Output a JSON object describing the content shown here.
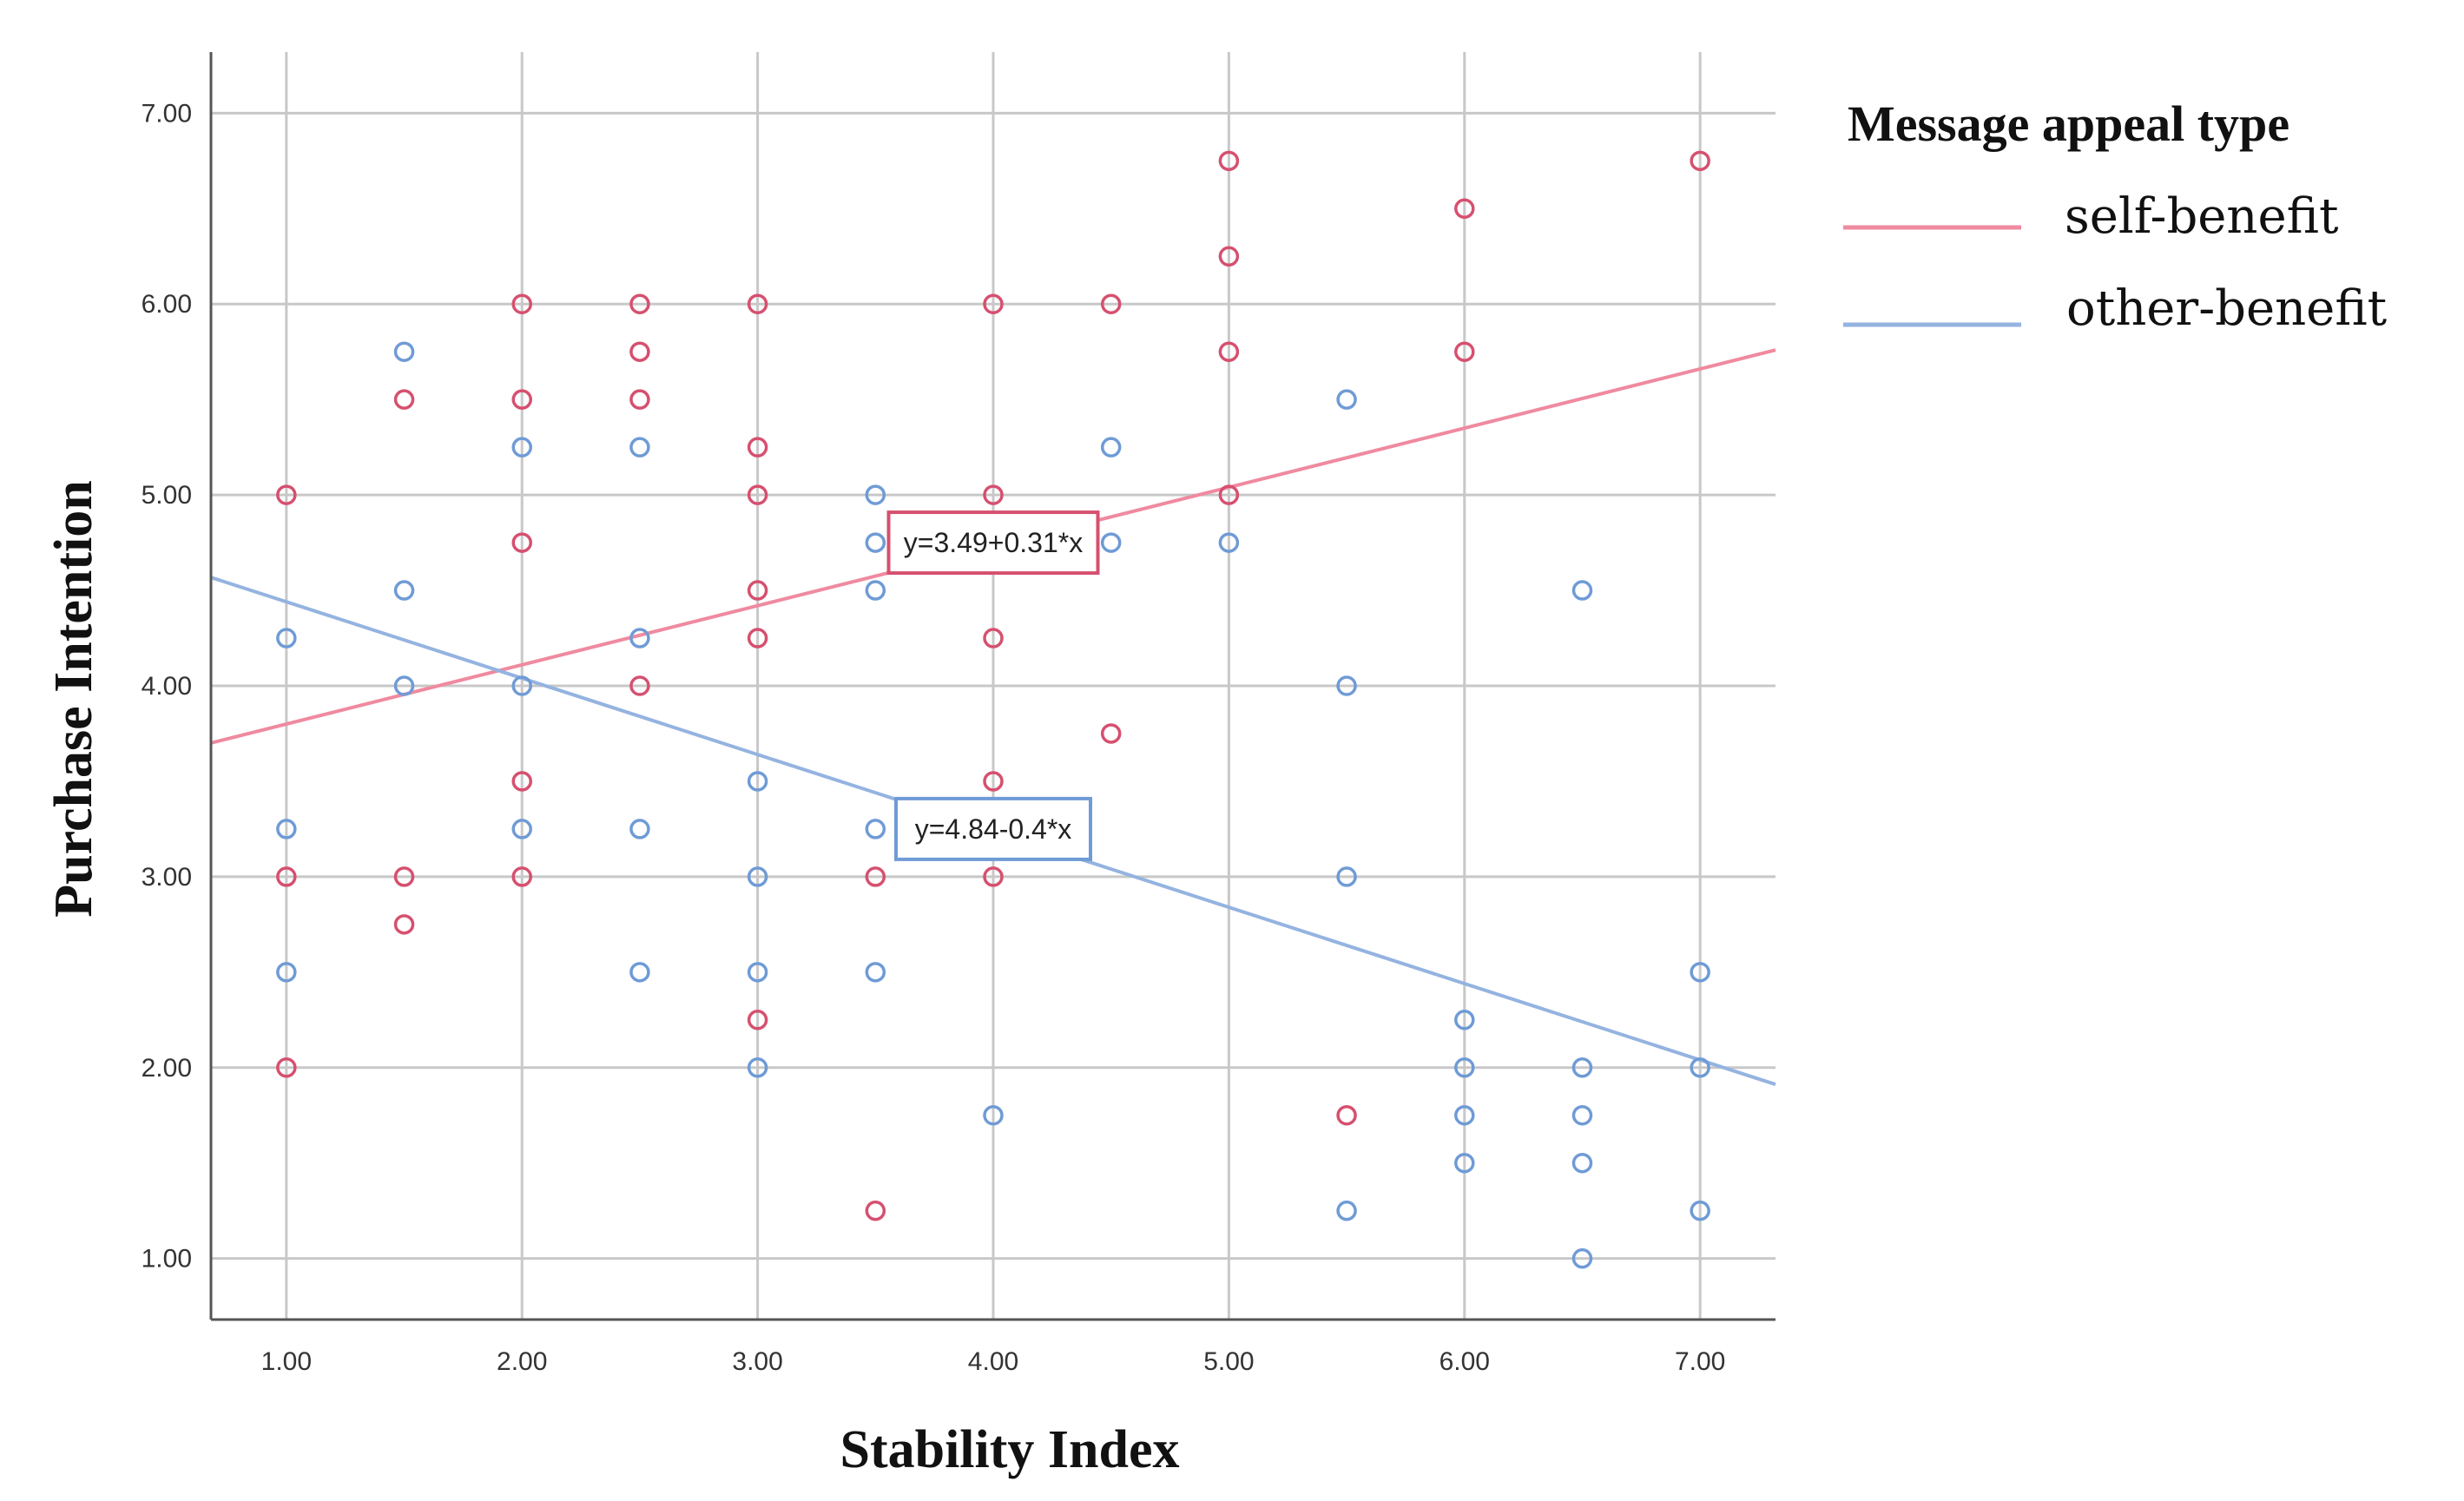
{
  "chart_data": {
    "type": "scatter",
    "title": "",
    "xlabel": "Stability Index",
    "ylabel": "Purchase Intention",
    "xlim": [
      0.68,
      7.32
    ],
    "ylim": [
      0.68,
      7.32
    ],
    "x_ticks": [
      "1.00",
      "2.00",
      "3.00",
      "4.00",
      "5.00",
      "6.00",
      "7.00"
    ],
    "y_ticks": [
      "1.00",
      "2.00",
      "3.00",
      "4.00",
      "5.00",
      "6.00",
      "7.00"
    ],
    "grid": true,
    "legend": {
      "title": "Message appeal type",
      "position": "right"
    },
    "series": [
      {
        "name": "self-benefit",
        "color": "#d6506f",
        "line_color": "#ef8aa0",
        "fit": {
          "intercept": 3.49,
          "slope": 0.31,
          "label": "y=3.49+0.31*x",
          "label_at": [
            4.0,
            4.75
          ]
        },
        "points": [
          [
            1,
            5
          ],
          [
            1,
            3
          ],
          [
            1,
            2
          ],
          [
            1.5,
            5.5
          ],
          [
            1.5,
            3
          ],
          [
            1.5,
            2.75
          ],
          [
            2,
            6
          ],
          [
            2,
            5.5
          ],
          [
            2,
            4.75
          ],
          [
            2,
            3.5
          ],
          [
            2,
            3
          ],
          [
            2.5,
            6
          ],
          [
            2.5,
            5.75
          ],
          [
            2.5,
            5.5
          ],
          [
            2.5,
            4
          ],
          [
            3,
            6
          ],
          [
            3,
            5.25
          ],
          [
            3,
            5
          ],
          [
            3,
            4.5
          ],
          [
            3,
            4.25
          ],
          [
            3,
            2.25
          ],
          [
            3.5,
            3
          ],
          [
            3.5,
            1.25
          ],
          [
            4,
            6
          ],
          [
            4,
            5
          ],
          [
            4,
            4.25
          ],
          [
            4,
            3.5
          ],
          [
            4,
            3
          ],
          [
            4.5,
            6
          ],
          [
            4.5,
            3.75
          ],
          [
            5,
            6.75
          ],
          [
            5,
            6.25
          ],
          [
            5,
            5.75
          ],
          [
            5,
            5
          ],
          [
            5.5,
            1.75
          ],
          [
            6,
            6.5
          ],
          [
            6,
            5.75
          ],
          [
            7,
            6.75
          ]
        ]
      },
      {
        "name": "other-benefit",
        "color": "#6f9bd6",
        "line_color": "#94b3e0",
        "fit": {
          "intercept": 4.84,
          "slope": -0.4,
          "label": "y=4.84-0.4*x",
          "label_at": [
            4.0,
            3.25
          ]
        },
        "points": [
          [
            1,
            4.25
          ],
          [
            1,
            3.25
          ],
          [
            1,
            2.5
          ],
          [
            1.5,
            5.75
          ],
          [
            1.5,
            4.5
          ],
          [
            1.5,
            4
          ],
          [
            2,
            5.25
          ],
          [
            2,
            4
          ],
          [
            2,
            3.25
          ],
          [
            2.5,
            5.25
          ],
          [
            2.5,
            4.25
          ],
          [
            2.5,
            3.25
          ],
          [
            2.5,
            2.5
          ],
          [
            3,
            3.5
          ],
          [
            3,
            3
          ],
          [
            3,
            2.5
          ],
          [
            3,
            2
          ],
          [
            3.5,
            5
          ],
          [
            3.5,
            4.75
          ],
          [
            3.5,
            4.5
          ],
          [
            3.5,
            3.25
          ],
          [
            3.5,
            2.5
          ],
          [
            4,
            1.75
          ],
          [
            4.5,
            5.25
          ],
          [
            4.5,
            4.75
          ],
          [
            5,
            4.75
          ],
          [
            5.5,
            5.5
          ],
          [
            5.5,
            4
          ],
          [
            5.5,
            3
          ],
          [
            5.5,
            1.25
          ],
          [
            6,
            2.25
          ],
          [
            6,
            2
          ],
          [
            6,
            1.75
          ],
          [
            6,
            1.5
          ],
          [
            6.5,
            4.5
          ],
          [
            6.5,
            2
          ],
          [
            6.5,
            1.75
          ],
          [
            6.5,
            1.5
          ],
          [
            6.5,
            1
          ],
          [
            7,
            2.5
          ],
          [
            7,
            2
          ],
          [
            7,
            1.25
          ]
        ]
      }
    ]
  }
}
